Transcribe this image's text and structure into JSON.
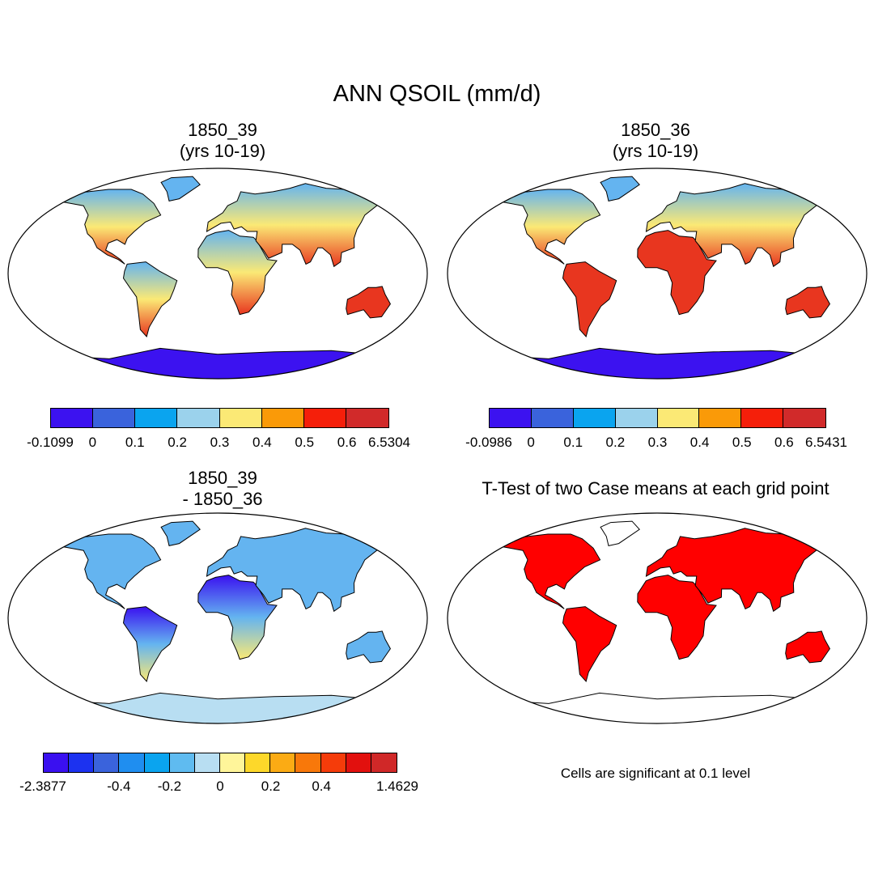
{
  "title": "ANN QSOIL (mm/d)",
  "panels": [
    {
      "title_line1": "1850_39",
      "title_line2": "(yrs 10-19)"
    },
    {
      "title_line1": "1850_36",
      "title_line2": "(yrs 10-19)"
    },
    {
      "title_line1": "1850_39",
      "title_line2": "- 1850_36"
    },
    {
      "title_line1": "T-Test of two Case means at each grid point"
    }
  ],
  "colorbars": [
    {
      "labels": [
        "-0.1099",
        "0",
        "0.1",
        "0.2",
        "0.3",
        "0.4",
        "0.5",
        "0.6",
        "6.5304"
      ],
      "colors": [
        "#3c12f0",
        "#3a63dc",
        "#0aa4ef",
        "#9bd2ec",
        "#fbe975",
        "#fa9a08",
        "#f51f0a",
        "#d12a2a"
      ]
    },
    {
      "labels": [
        "-0.0986",
        "0",
        "0.1",
        "0.2",
        "0.3",
        "0.4",
        "0.5",
        "0.6",
        "6.5431"
      ],
      "colors": [
        "#3c12f0",
        "#3a63dc",
        "#0aa4ef",
        "#9bd2ec",
        "#fbe975",
        "#fa9a08",
        "#f51f0a",
        "#d12a2a"
      ]
    },
    {
      "labels": [
        "-2.3877",
        "-0.4",
        "-0.2",
        "0",
        "0.2",
        "0.4",
        "1.4629"
      ],
      "colors": [
        "#3a10f0",
        "#1c32f0",
        "#3a63dc",
        "#1f8ef0",
        "#0aa4ef",
        "#5fbbf0",
        "#b8def2",
        "#fff59a",
        "#fdd82a",
        "#fbab14",
        "#f8780a",
        "#f53c0a",
        "#e2100e",
        "#d02828"
      ]
    }
  ],
  "significance_note": "Cells are significant at 0.1 level",
  "map_colors": {
    "frame": "#000000",
    "significant": "#ff0000",
    "land_positive": "#e8361f",
    "land_mid": "#fbe975",
    "land_low": "#64b4f0",
    "antarctica": "#3c12f0",
    "diff_antarctica": "#b8def2"
  }
}
